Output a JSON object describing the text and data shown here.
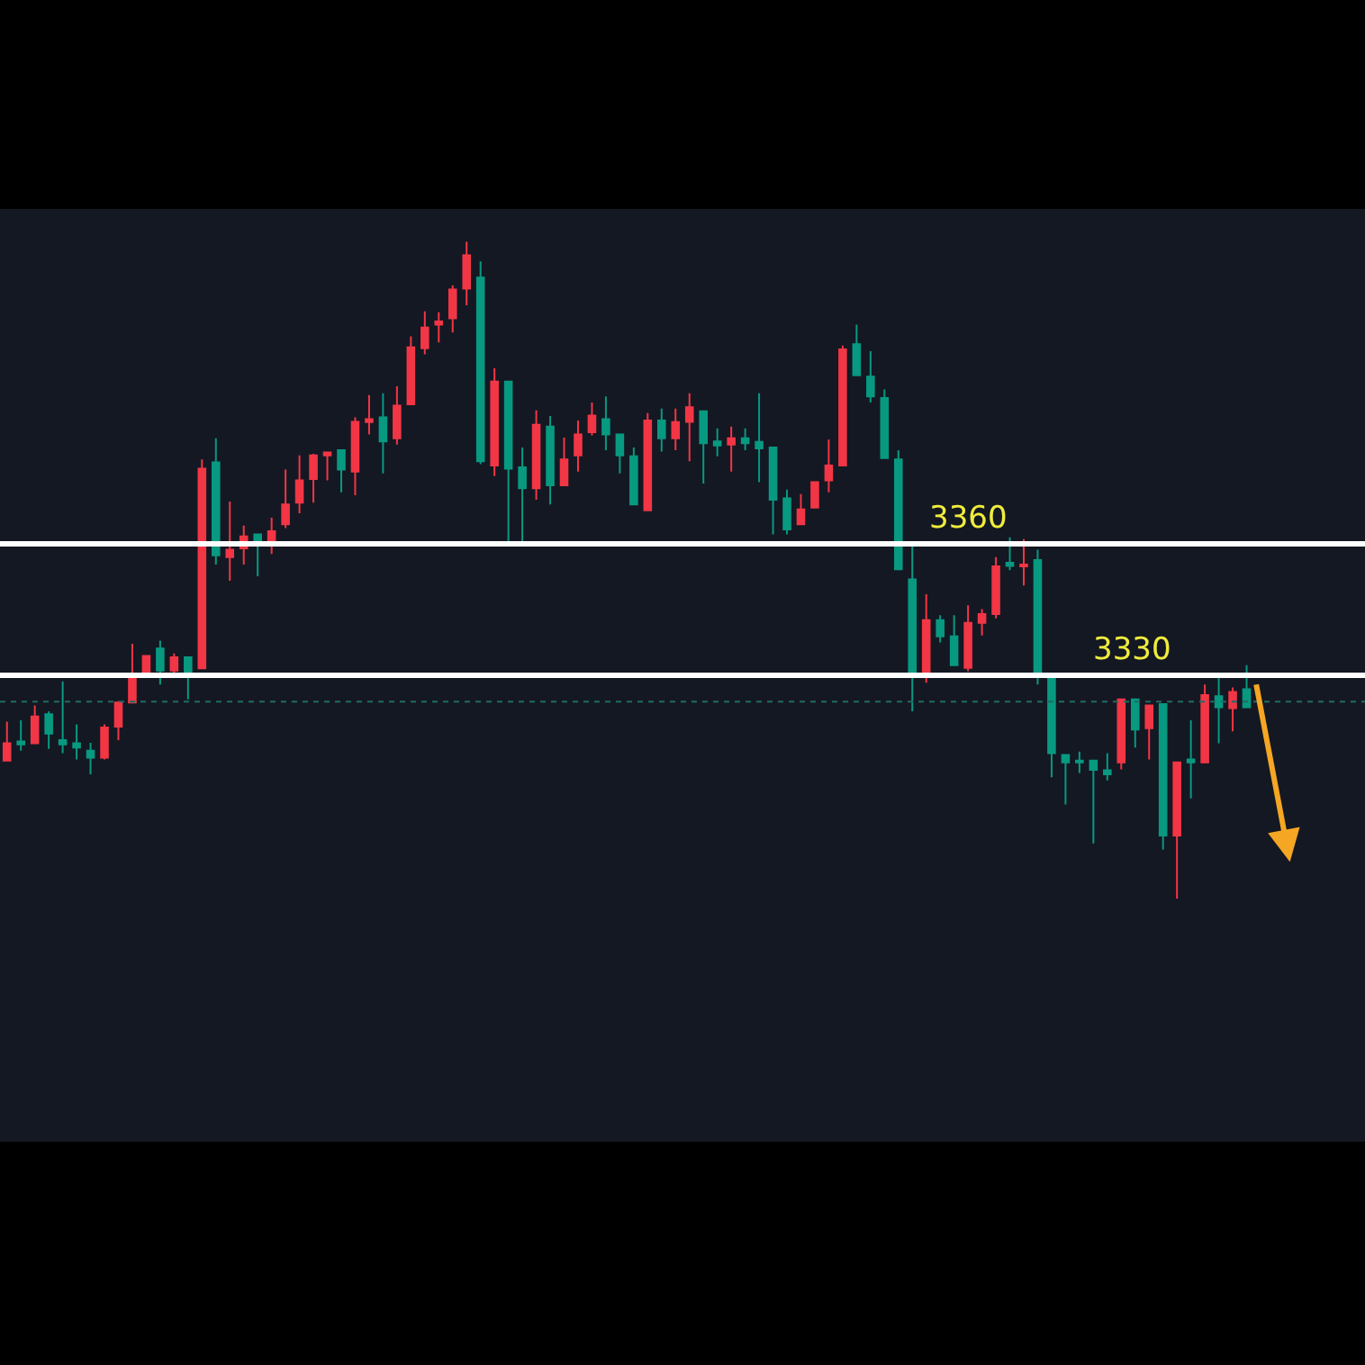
{
  "chart_data": {
    "type": "candlestick",
    "categories": [
      null,
      null,
      null,
      null,
      null,
      null,
      null,
      null,
      null,
      null,
      null,
      null,
      null,
      null,
      null,
      null,
      null,
      null,
      null,
      null,
      null,
      null,
      null,
      null,
      null,
      null,
      null,
      null,
      null,
      null,
      null,
      null,
      null,
      null,
      null,
      null,
      null,
      null,
      null,
      null,
      null,
      null,
      null,
      null,
      null,
      null,
      null,
      null,
      null,
      null,
      null,
      null,
      null,
      null,
      null,
      null,
      null,
      null,
      null,
      null,
      null,
      null,
      null,
      null,
      null,
      null,
      null,
      null,
      null,
      null,
      null,
      null,
      null,
      null,
      null,
      null,
      null,
      null,
      null,
      null,
      null,
      null,
      null,
      null,
      null,
      null,
      null,
      null,
      null,
      null
    ],
    "ohlc": [
      [
        3310.5,
        3319.4,
        3310.5,
        3314.5
      ],
      [
        3314.9,
        3319.7,
        3312.8,
        3314.2
      ],
      [
        3314.5,
        3323.1,
        3314.5,
        3320.6
      ],
      [
        3321.1,
        3321.8,
        3313.2,
        3316.7
      ],
      [
        3315.2,
        3328.6,
        3312.2,
        3314.2
      ],
      [
        3314.5,
        3318.8,
        3310.8,
        3313.5
      ],
      [
        3312.8,
        3314.6,
        3307.4,
        3311.2
      ],
      [
        3311.2,
        3318.8,
        3310.8,
        3318.1
      ],
      [
        3318.3,
        3324.1,
        3315.2,
        3323.8
      ],
      [
        3323.8,
        3337.2,
        3323.8,
        3329.6
      ],
      [
        3330.3,
        3334.4,
        3330.3,
        3334.4
      ],
      [
        3336.1,
        3337.9,
        3327.9,
        3331.1
      ],
      [
        3331.1,
        3335.0,
        3329.7,
        3334.1
      ],
      [
        3334.1,
        3334.1,
        3324.5,
        3330.3
      ],
      [
        3331.6,
        3379.3,
        3331.6,
        3377.2
      ],
      [
        3378.6,
        3384.1,
        3355.3,
        3357.4
      ],
      [
        3357.0,
        3369.7,
        3351.6,
        3358.7
      ],
      [
        3359.0,
        3364.2,
        3355.3,
        3361.7
      ],
      [
        3362.2,
        3362.2,
        3352.6,
        3360.8
      ],
      [
        3359.9,
        3366.0,
        3357.7,
        3362.9
      ],
      [
        3364.5,
        3377.0,
        3363.6,
        3369.0
      ],
      [
        3369.4,
        3380.2,
        3367.0,
        3374.5
      ],
      [
        3374.8,
        3380.6,
        3369.4,
        3380.2
      ],
      [
        3380.2,
        3380.9,
        3374.5,
        3380.9
      ],
      [
        3381.4,
        3381.4,
        3371.8,
        3377.0
      ],
      [
        3376.5,
        3388.9,
        3371.1,
        3387.9
      ],
      [
        3387.8,
        3394.0,
        3385.0,
        3388.5
      ],
      [
        3388.9,
        3394.4,
        3376.1,
        3383.4
      ],
      [
        3384.1,
        3396.0,
        3382.7,
        3391.6
      ],
      [
        3391.9,
        3407.4,
        3391.9,
        3404.9
      ],
      [
        3404.7,
        3413.1,
        3403.3,
        3409.4
      ],
      [
        3410.1,
        3412.9,
        3406.0,
        3410.8
      ],
      [
        3411.5,
        3419.0,
        3408.3,
        3418.1
      ],
      [
        3418.3,
        3429.0,
        3414.5,
        3425.9
      ],
      [
        3420.8,
        3424.5,
        3378.2,
        3378.9
      ],
      [
        3377.9,
        3400.1,
        3375.5,
        3397.1
      ],
      [
        3397.1,
        3397.1,
        3360.1,
        3377.2
      ],
      [
        3377.5,
        3382.0,
        3360.1,
        3372.7
      ],
      [
        3372.7,
        3390.5,
        3370.1,
        3387.2
      ],
      [
        3386.8,
        3389.2,
        3369.0,
        3373.4
      ],
      [
        3373.4,
        3384.3,
        3373.4,
        3379.3
      ],
      [
        3380.2,
        3388.2,
        3376.5,
        3385.0
      ],
      [
        3385.5,
        3392.3,
        3384.8,
        3389.3
      ],
      [
        3388.5,
        3393.7,
        3381.4,
        3385.0
      ],
      [
        3385.0,
        3385.0,
        3376.1,
        3380.2
      ],
      [
        3380.0,
        3382.0,
        3369.0,
        3369.0
      ],
      [
        3367.7,
        3389.9,
        3367.7,
        3388.2
      ],
      [
        3388.2,
        3390.9,
        3381.1,
        3384.1
      ],
      [
        3384.1,
        3390.9,
        3381.4,
        3387.8
      ],
      [
        3387.9,
        3394.4,
        3378.9,
        3391.2
      ],
      [
        3390.3,
        3390.3,
        3373.8,
        3383.0
      ],
      [
        3383.4,
        3386.4,
        3380.0,
        3382.5
      ],
      [
        3382.7,
        3386.8,
        3376.5,
        3384.1
      ],
      [
        3384.1,
        3386.4,
        3381.4,
        3383.0
      ],
      [
        3383.3,
        3394.4,
        3374.1,
        3381.8
      ],
      [
        3382.0,
        3382.0,
        3362.2,
        3370.1
      ],
      [
        3370.4,
        3372.4,
        3362.2,
        3363.3
      ],
      [
        3364.5,
        3371.4,
        3364.5,
        3367.9
      ],
      [
        3368.3,
        3374.1,
        3368.3,
        3374.1
      ],
      [
        3374.5,
        3383.8,
        3371.8,
        3377.9
      ],
      [
        3377.9,
        3405.3,
        3377.9,
        3404.4
      ],
      [
        3405.6,
        3410.1,
        3398.5,
        3398.5
      ],
      [
        3398.2,
        3404.0,
        3392.3,
        3393.7
      ],
      [
        3393.3,
        3395.3,
        3379.6,
        3379.6
      ],
      [
        3379.3,
        3381.4,
        3354.2,
        3354.2
      ],
      [
        3351.9,
        3359.7,
        3321.8,
        3330.0
      ],
      [
        3330.4,
        3348.5,
        3328.3,
        3342.6
      ],
      [
        3342.6,
        3343.7,
        3337.5,
        3338.9
      ],
      [
        3338.9,
        3343.7,
        3332.3,
        3332.3
      ],
      [
        3331.7,
        3346.0,
        3330.9,
        3342.0
      ],
      [
        3342.0,
        3345.1,
        3339.1,
        3344.0
      ],
      [
        3344.0,
        3357.0,
        3343.0,
        3354.9
      ],
      [
        3355.7,
        3361.5,
        3354.0,
        3355.0
      ],
      [
        3354.9,
        3361.1,
        3350.5,
        3355.3
      ],
      [
        3356.3,
        3358.7,
        3327.9,
        3330.0
      ],
      [
        3329.3,
        3329.3,
        3306.7,
        3312.2
      ],
      [
        3311.8,
        3311.8,
        3300.5,
        3310.1
      ],
      [
        3310.5,
        3312.6,
        3307.7,
        3310.1
      ],
      [
        3310.5,
        3310.5,
        3291.6,
        3308.4
      ],
      [
        3308.3,
        3312.2,
        3306.0,
        3307.4
      ],
      [
        3310.1,
        3324.5,
        3308.5,
        3324.5
      ],
      [
        3324.5,
        3324.5,
        3313.5,
        3317.6
      ],
      [
        3317.9,
        3323.1,
        3310.8,
        3323.1
      ],
      [
        3323.4,
        3323.4,
        3290.2,
        3293.4
      ],
      [
        3293.4,
        3310.1,
        3279.0,
        3310.1
      ],
      [
        3310.8,
        3319.7,
        3301.9,
        3310.1
      ],
      [
        3310.1,
        3327.9,
        3310.1,
        3325.5
      ],
      [
        3325.2,
        3330.0,
        3314.5,
        3322.7
      ],
      [
        3322.5,
        3327.2,
        3317.2,
        3326.2
      ],
      [
        3326.8,
        3332.3,
        3322.7,
        3322.7
      ]
    ],
    "colors": [
      "#f23645",
      "#089981",
      "#f23645",
      "#089981",
      "#089981",
      "#089981",
      "#089981",
      "#f23645",
      "#f23645",
      "#f23645",
      "#f23645",
      "#089981",
      "#f23645",
      "#089981",
      "#f23645",
      "#089981",
      "#f23645",
      "#f23645",
      "#089981",
      "#f23645",
      "#f23645",
      "#f23645",
      "#f23645",
      "#f23645",
      "#089981",
      "#f23645",
      "#f23645",
      "#089981",
      "#f23645",
      "#f23645",
      "#f23645",
      "#f23645",
      "#f23645",
      "#f23645",
      "#089981",
      "#f23645",
      "#089981",
      "#089981",
      "#f23645",
      "#089981",
      "#f23645",
      "#f23645",
      "#f23645",
      "#089981",
      "#089981",
      "#089981",
      "#f23645",
      "#089981",
      "#f23645",
      "#f23645",
      "#089981",
      "#089981",
      "#f23645",
      "#089981",
      "#089981",
      "#089981",
      "#089981",
      "#f23645",
      "#f23645",
      "#f23645",
      "#f23645",
      "#089981",
      "#089981",
      "#089981",
      "#089981",
      "#089981",
      "#f23645",
      "#089981",
      "#089981",
      "#f23645",
      "#f23645",
      "#f23645",
      "#089981",
      "#f23645",
      "#089981",
      "#089981",
      "#089981",
      "#089981",
      "#089981",
      "#089981",
      "#f23645",
      "#089981",
      "#f23645",
      "#089981",
      "#f23645",
      "#089981",
      "#f23645",
      "#089981",
      "#f23645",
      "#089981"
    ],
    "ylim": [
      3223.5,
      3436.5
    ],
    "ref_lines": [
      {
        "axis": "y",
        "value": 3360,
        "label": "3360",
        "color": "#ffffff",
        "line_style": "solid"
      },
      {
        "axis": "y",
        "value": 3330,
        "label": "3330",
        "color": "#ffffff",
        "line_style": "solid"
      },
      {
        "axis": "y",
        "value": 3324,
        "color": "#1f6b63",
        "line_style": "dotted"
      }
    ],
    "tick_labels": false
  }
}
